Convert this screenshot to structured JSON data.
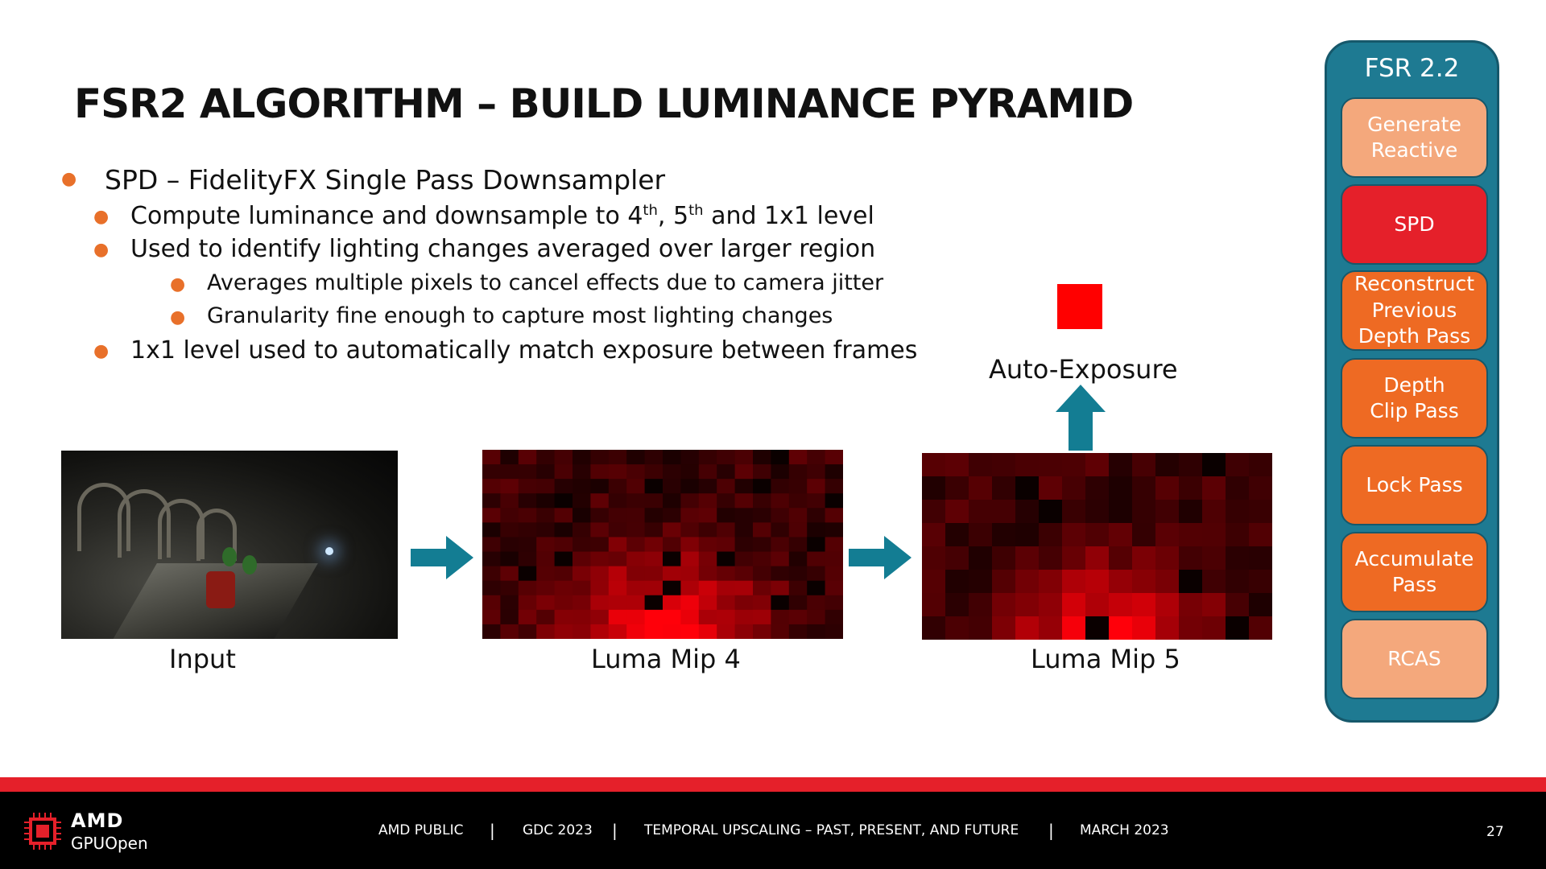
{
  "slide": {
    "title": "FSR2 ALGORITHM – BUILD LUMINANCE PYRAMID",
    "bullets": {
      "b1": "SPD – FidelityFX Single Pass Downsampler",
      "b2_pre": "Compute luminance and downsample to 4",
      "b2_sup1": "th",
      "b2_mid": ", 5",
      "b2_sup2": "th",
      "b2_post": " and 1x1 level",
      "b3": "Used to identify lighting changes averaged over larger region",
      "b4": "Averages multiple pixels to cancel effects due to camera jitter",
      "b5": "Granularity fine enough to capture most lighting changes",
      "b6": "1x1 level used to automatically match exposure between frames"
    },
    "captions": {
      "input": "Input",
      "mip4": "Luma Mip 4",
      "mip5": "Luma Mip 5",
      "auto_exposure": "Auto-Exposure"
    }
  },
  "pipeline": {
    "title": "FSR 2.2",
    "stages": [
      {
        "label": "Generate Reactive",
        "state": "inactive"
      },
      {
        "label": "SPD",
        "state": "active"
      },
      {
        "label": "Reconstruct Previous Depth Pass",
        "state": "pending"
      },
      {
        "label": "Depth Clip Pass",
        "state": "pending"
      },
      {
        "label": "Lock Pass",
        "state": "pending"
      },
      {
        "label": "Accumulate Pass",
        "state": "pending"
      },
      {
        "label": "RCAS",
        "state": "inactive"
      }
    ]
  },
  "footer": {
    "brand": "AMD",
    "sub_brand": "GPUOpen",
    "items": [
      "AMD PUBLIC",
      "GDC 2023",
      "TEMPORAL UPSCALING – PAST, PRESENT, AND FUTURE",
      "MARCH 2023"
    ],
    "page_number": "27"
  },
  "colors": {
    "accent_orange": "#ee6a23",
    "accent_light": "#f4a87c",
    "accent_red": "#e5202a",
    "arrow_teal": "#137d93",
    "sidebar_teal": "#1e7a92",
    "bullet_dot": "#e8702a",
    "footer_bg": "#000000"
  },
  "icons": {
    "arrow_right": "arrow-right-icon",
    "arrow_up": "arrow-up-icon",
    "logo": "amd-chip-logo-icon"
  }
}
